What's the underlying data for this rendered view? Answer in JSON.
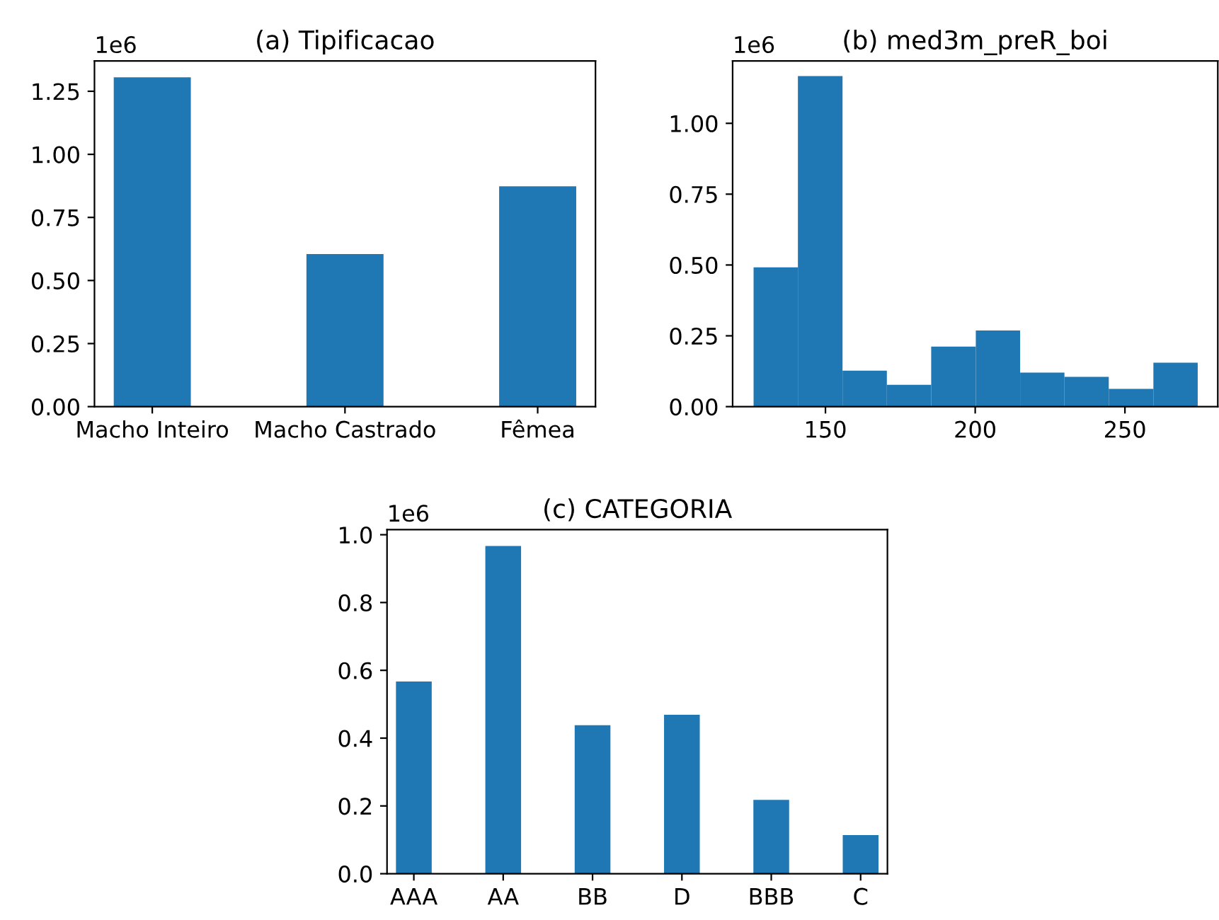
{
  "chart_data": [
    {
      "type": "bar",
      "title": "(a) Tipificacao",
      "color": "#1f77b4",
      "categories": [
        "Macho Inteiro",
        "Macho Castrado",
        "Fêmea"
      ],
      "values": [
        1.305,
        0.605,
        0.873
      ],
      "ylim": [
        0,
        1.37
      ],
      "yticks": [
        {
          "value": 0,
          "label": "0.00"
        },
        {
          "value": 0.25,
          "label": "0.25"
        },
        {
          "value": 0.5,
          "label": "0.50"
        },
        {
          "value": 0.75,
          "label": "0.75"
        },
        {
          "value": 1.0,
          "label": "1.00"
        },
        {
          "value": 1.25,
          "label": "1.25"
        }
      ],
      "annotations": [
        "1e6"
      ]
    },
    {
      "type": "histogram",
      "title": "(b) med3m_preR_boi",
      "color": "#1f77b4",
      "bins": [
        126,
        140.8,
        155.7,
        170.5,
        185.3,
        200.2,
        215,
        229.8,
        244.6,
        259.5,
        274.3
      ],
      "values": [
        0.492,
        1.167,
        0.127,
        0.077,
        0.212,
        0.269,
        0.12,
        0.105,
        0.063,
        0.155
      ],
      "xlim": [
        119,
        281
      ],
      "ylim": [
        0,
        1.22
      ],
      "xticks": [
        150,
        200,
        250
      ],
      "yticks": [
        {
          "value": 0,
          "label": "0.00"
        },
        {
          "value": 0.25,
          "label": "0.25"
        },
        {
          "value": 0.5,
          "label": "0.50"
        },
        {
          "value": 0.75,
          "label": "0.75"
        },
        {
          "value": 1.0,
          "label": "1.00"
        }
      ],
      "annotations": [
        "1e6"
      ]
    },
    {
      "type": "bar",
      "title": "(c) CATEGORIA",
      "color": "#1f77b4",
      "categories": [
        "AAA",
        "AA",
        "BB",
        "D",
        "BBB",
        "C"
      ],
      "values": [
        0.567,
        0.967,
        0.438,
        0.469,
        0.218,
        0.114
      ],
      "ylim": [
        0,
        1.015
      ],
      "yticks": [
        {
          "value": 0,
          "label": "0.0"
        },
        {
          "value": 0.2,
          "label": "0.2"
        },
        {
          "value": 0.4,
          "label": "0.4"
        },
        {
          "value": 0.6,
          "label": "0.6"
        },
        {
          "value": 0.8,
          "label": "0.8"
        },
        {
          "value": 1.0,
          "label": "1.0"
        }
      ],
      "annotations": [
        "1e6"
      ]
    }
  ]
}
